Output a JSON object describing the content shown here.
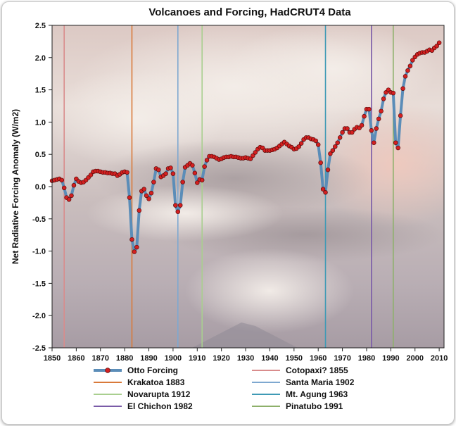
{
  "chart_data": {
    "type": "line",
    "title": "Volcanoes and Forcing, HadCRUT4 Data",
    "xlabel": "",
    "ylabel": "Net Radiative Forcing Anomaly (W/m2)",
    "xlim": [
      1850,
      2012
    ],
    "ylim": [
      -2.5,
      2.5
    ],
    "x_ticks": [
      1850,
      1860,
      1870,
      1880,
      1890,
      1900,
      1910,
      1920,
      1930,
      1940,
      1950,
      1960,
      1970,
      1980,
      1990,
      2000,
      2010
    ],
    "y_ticks": [
      2.5,
      2.0,
      1.5,
      1.0,
      0.5,
      0.0,
      -0.5,
      -1.0,
      -1.5,
      -2.0,
      -2.5
    ],
    "y_tick_labels": [
      "2.5",
      "2.0",
      "1.5",
      "1.0",
      "0.5",
      "0.0",
      "-0.5",
      "-1.0",
      "-1.5",
      "-2.0",
      "-2.5"
    ],
    "grid": false,
    "background": "photo of volcanic eruption plume",
    "series": [
      {
        "name": "Otto Forcing",
        "line_color": "#5b8db8",
        "marker_color": "#d42020",
        "x": [
          1850,
          1851,
          1852,
          1853,
          1854,
          1855,
          1856,
          1857,
          1858,
          1859,
          1860,
          1861,
          1862,
          1863,
          1864,
          1865,
          1866,
          1867,
          1868,
          1869,
          1870,
          1871,
          1872,
          1873,
          1874,
          1875,
          1876,
          1877,
          1878,
          1879,
          1880,
          1881,
          1882,
          1883,
          1884,
          1885,
          1886,
          1887,
          1888,
          1889,
          1890,
          1891,
          1892,
          1893,
          1894,
          1895,
          1896,
          1897,
          1898,
          1899,
          1900,
          1901,
          1902,
          1903,
          1904,
          1905,
          1906,
          1907,
          1908,
          1909,
          1910,
          1911,
          1912,
          1913,
          1914,
          1915,
          1916,
          1917,
          1918,
          1919,
          1920,
          1921,
          1922,
          1923,
          1924,
          1925,
          1926,
          1927,
          1928,
          1929,
          1930,
          1931,
          1932,
          1933,
          1934,
          1935,
          1936,
          1937,
          1938,
          1939,
          1940,
          1941,
          1942,
          1943,
          1944,
          1945,
          1946,
          1947,
          1948,
          1949,
          1950,
          1951,
          1952,
          1953,
          1954,
          1955,
          1956,
          1957,
          1958,
          1959,
          1960,
          1961,
          1962,
          1963,
          1964,
          1965,
          1966,
          1967,
          1968,
          1969,
          1970,
          1971,
          1972,
          1973,
          1974,
          1975,
          1976,
          1977,
          1978,
          1979,
          1980,
          1981,
          1982,
          1983,
          1984,
          1985,
          1986,
          1987,
          1988,
          1989,
          1990,
          1991,
          1992,
          1993,
          1994,
          1995,
          1996,
          1997,
          1998,
          1999,
          2000,
          2001,
          2002,
          2003,
          2004,
          2005,
          2006,
          2007,
          2008,
          2009,
          2010
        ],
        "y": [
          0.09,
          0.1,
          0.11,
          0.12,
          0.1,
          -0.02,
          -0.17,
          -0.2,
          -0.14,
          0.02,
          0.12,
          0.08,
          0.06,
          0.07,
          0.1,
          0.14,
          0.18,
          0.23,
          0.24,
          0.24,
          0.23,
          0.22,
          0.22,
          0.21,
          0.21,
          0.2,
          0.2,
          0.17,
          0.19,
          0.22,
          0.23,
          0.22,
          -0.17,
          -0.82,
          -1.01,
          -0.94,
          -0.37,
          -0.07,
          -0.04,
          -0.14,
          -0.19,
          -0.1,
          0.07,
          0.28,
          0.26,
          0.15,
          0.17,
          0.2,
          0.28,
          0.29,
          0.2,
          -0.29,
          -0.39,
          -0.29,
          0.07,
          0.3,
          0.33,
          0.36,
          0.33,
          0.21,
          0.06,
          0.11,
          0.1,
          0.31,
          0.41,
          0.47,
          0.47,
          0.46,
          0.44,
          0.42,
          0.43,
          0.45,
          0.46,
          0.46,
          0.47,
          0.46,
          0.46,
          0.45,
          0.44,
          0.44,
          0.45,
          0.44,
          0.43,
          0.48,
          0.53,
          0.58,
          0.61,
          0.6,
          0.56,
          0.56,
          0.56,
          0.57,
          0.58,
          0.6,
          0.63,
          0.66,
          0.69,
          0.66,
          0.63,
          0.61,
          0.58,
          0.59,
          0.62,
          0.67,
          0.73,
          0.76,
          0.76,
          0.74,
          0.73,
          0.71,
          0.65,
          0.37,
          -0.04,
          -0.09,
          0.26,
          0.51,
          0.56,
          0.62,
          0.68,
          0.76,
          0.84,
          0.9,
          0.9,
          0.84,
          0.84,
          0.89,
          0.92,
          0.91,
          0.95,
          1.09,
          1.2,
          1.2,
          0.87,
          0.68,
          0.9,
          1.05,
          1.17,
          1.36,
          1.46,
          1.5,
          1.46,
          1.45,
          0.68,
          0.6,
          1.1,
          1.52,
          1.71,
          1.8,
          1.87,
          1.96,
          2.01,
          2.05,
          2.07,
          2.08,
          2.08,
          2.1,
          2.12,
          2.11,
          2.15,
          2.18,
          2.23
        ]
      }
    ],
    "annotations": [
      {
        "name": "Cotopaxi? 1855",
        "x": 1855,
        "color": "#d98c8c"
      },
      {
        "name": "Krakatoa 1883",
        "x": 1883,
        "color": "#d97a3a"
      },
      {
        "name": "Santa Maria 1902",
        "x": 1902,
        "color": "#7ea8d0"
      },
      {
        "name": "Novarupta 1912",
        "x": 1912,
        "color": "#a9cf8f"
      },
      {
        "name": "Mt. Agung 1963",
        "x": 1963,
        "color": "#3f9ab5"
      },
      {
        "name": "El Chichon 1982",
        "x": 1982,
        "color": "#7a5ba8"
      },
      {
        "name": "Pinatubo 1991",
        "x": 1991,
        "color": "#8db06a"
      }
    ],
    "legend": {
      "placement": "bottom",
      "items": [
        {
          "label": "Otto Forcing",
          "kind": "series"
        },
        {
          "label": "Cotopaxi? 1855",
          "color": "#d98c8c"
        },
        {
          "label": "Krakatoa 1883",
          "color": "#d97a3a"
        },
        {
          "label": "Santa Maria 1902",
          "color": "#7ea8d0"
        },
        {
          "label": "Novarupta 1912",
          "color": "#a9cf8f"
        },
        {
          "label": "Mt. Agung 1963",
          "color": "#3f9ab5"
        },
        {
          "label": "El Chichon 1982",
          "color": "#7a5ba8"
        },
        {
          "label": "Pinatubo 1991",
          "color": "#8db06a"
        }
      ]
    }
  }
}
